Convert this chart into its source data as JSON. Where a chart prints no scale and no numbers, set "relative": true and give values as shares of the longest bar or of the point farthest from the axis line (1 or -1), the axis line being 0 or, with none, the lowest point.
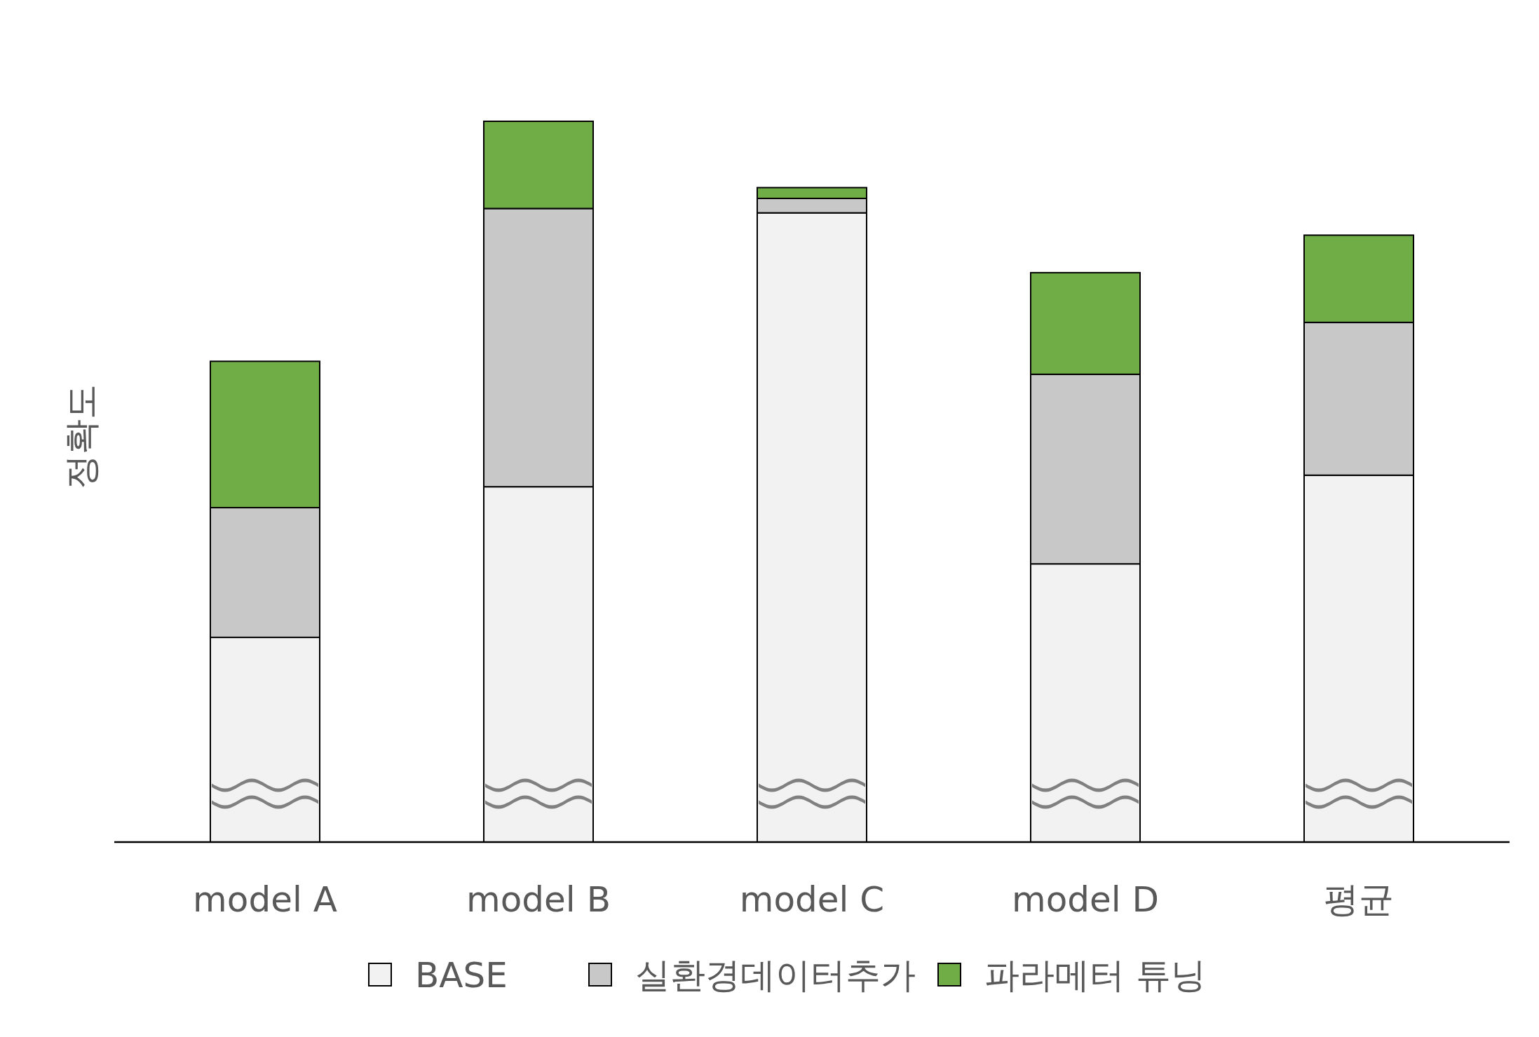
{
  "chart_data": {
    "type": "bar",
    "ylabel": "정확도",
    "categories": [
      "model A",
      "model B",
      "model C",
      "model D",
      "평균"
    ],
    "stacked": true,
    "relative": true,
    "legend": "bottom",
    "series": [
      {
        "name": "BASE",
        "color": "#f2f2f2",
        "values": [
          0.284,
          0.493,
          0.873,
          0.386,
          0.509
        ]
      },
      {
        "name": "실환경데이터추가",
        "color": "#c8c8c8",
        "values": [
          0.18,
          0.386,
          0.02,
          0.263,
          0.212
        ]
      },
      {
        "name": "파라메터 튜닝",
        "color": "#70ad47",
        "values": [
          0.203,
          0.121,
          0.015,
          0.141,
          0.121
        ]
      }
    ]
  }
}
